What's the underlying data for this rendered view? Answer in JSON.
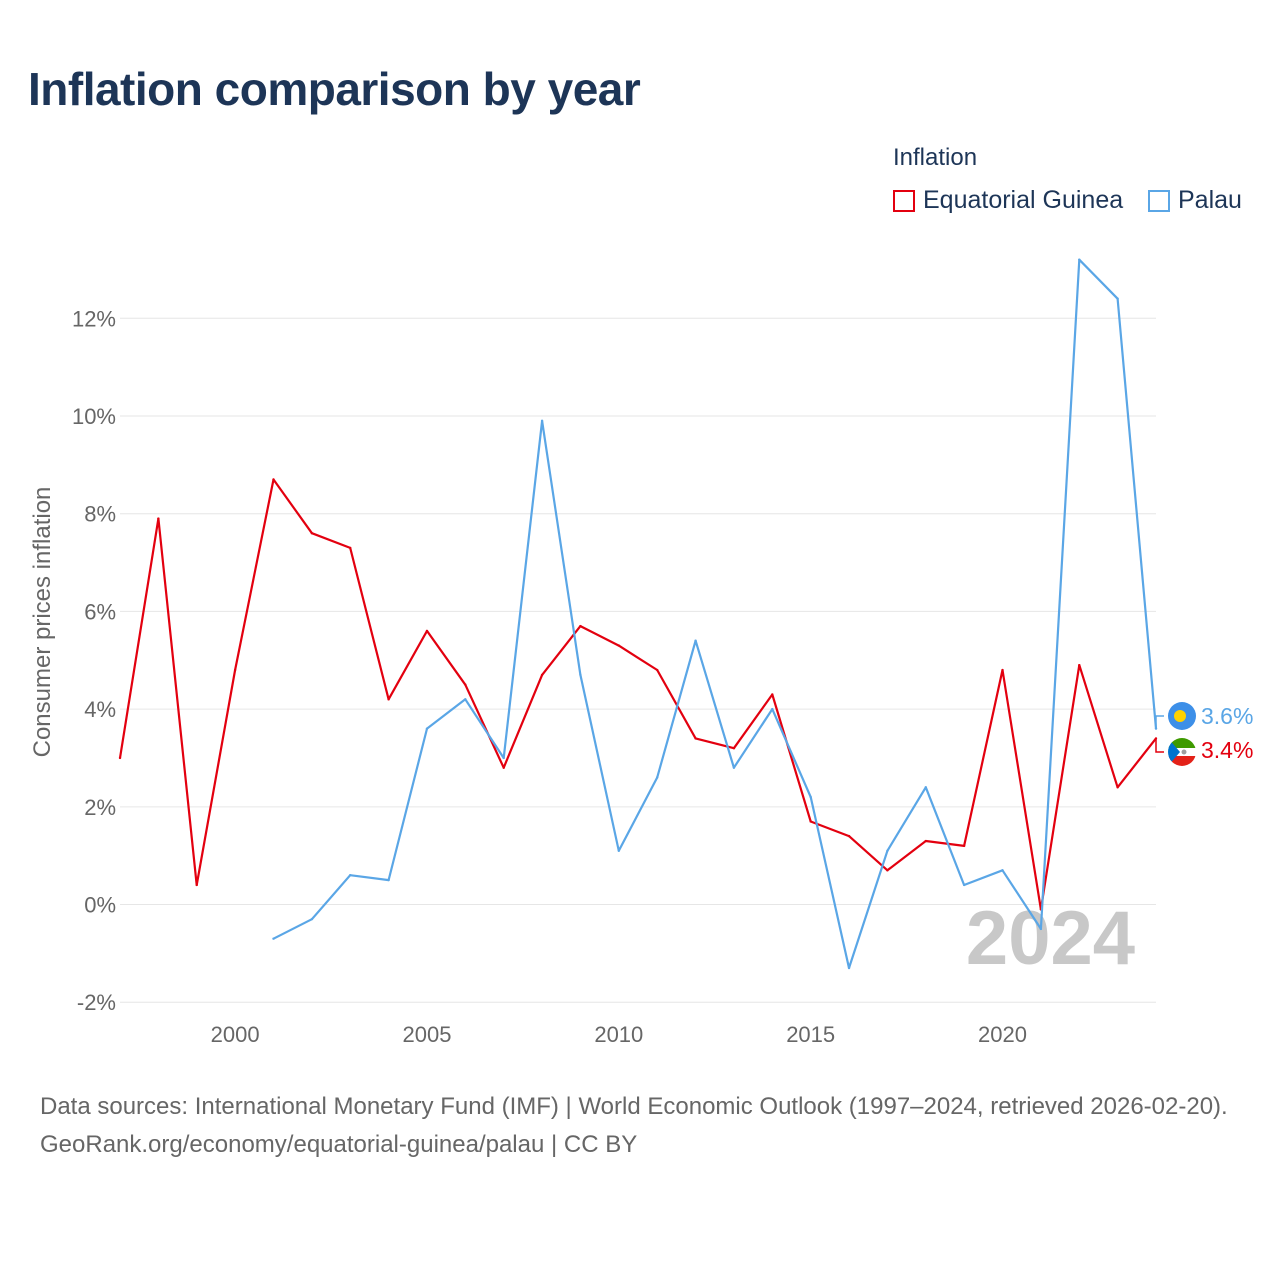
{
  "title": "Inflation comparison by year",
  "legend": {
    "title": "Inflation",
    "items": [
      {
        "label": "Equatorial Guinea",
        "color": "#e3000f"
      },
      {
        "label": "Palau",
        "color": "#5aa6e6"
      }
    ]
  },
  "chart_data": {
    "type": "line",
    "title": "Inflation comparison by year",
    "ylabel": "Consumer prices inflation",
    "xlabel": "",
    "xlim": [
      1997,
      2024
    ],
    "ylim": [
      -2.2,
      13.5
    ],
    "x_ticks": [
      2000,
      2005,
      2010,
      2015,
      2020
    ],
    "y_ticks": [
      -2,
      0,
      2,
      4,
      6,
      8,
      10,
      12
    ],
    "y_tick_labels": [
      "-2%",
      "0%",
      "2%",
      "4%",
      "6%",
      "8%",
      "10%",
      "12%"
    ],
    "grid": true,
    "year_watermark": "2024",
    "series": [
      {
        "name": "Equatorial Guinea",
        "color": "#e3000f",
        "end_label": "3.4%",
        "x": [
          1997,
          1998,
          1999,
          2000,
          2001,
          2002,
          2003,
          2004,
          2005,
          2006,
          2007,
          2008,
          2009,
          2010,
          2011,
          2012,
          2013,
          2014,
          2015,
          2016,
          2017,
          2018,
          2019,
          2020,
          2021,
          2022,
          2023,
          2024
        ],
        "values": [
          3.0,
          7.9,
          0.4,
          4.8,
          8.7,
          7.6,
          7.3,
          4.2,
          5.6,
          4.5,
          2.8,
          4.7,
          5.7,
          5.3,
          4.8,
          3.4,
          3.2,
          4.3,
          1.7,
          1.4,
          0.7,
          1.3,
          1.2,
          4.8,
          -0.1,
          4.9,
          2.4,
          3.4
        ]
      },
      {
        "name": "Palau",
        "color": "#5aa6e6",
        "end_label": "3.6%",
        "x": [
          2001,
          2002,
          2003,
          2004,
          2005,
          2006,
          2007,
          2008,
          2009,
          2010,
          2011,
          2012,
          2013,
          2014,
          2015,
          2016,
          2017,
          2018,
          2019,
          2020,
          2021,
          2022,
          2023,
          2024
        ],
        "values": [
          -0.7,
          -0.3,
          0.6,
          0.5,
          3.6,
          4.2,
          3.0,
          9.9,
          4.7,
          1.1,
          2.6,
          5.4,
          2.8,
          4.0,
          2.2,
          -1.3,
          1.1,
          2.4,
          0.4,
          0.7,
          -0.5,
          13.2,
          12.4,
          3.6
        ]
      }
    ]
  },
  "source": {
    "line1": "Data sources: International Monetary Fund (IMF) | World Economic Outlook (1997–2024, retrieved 2026-02-20).",
    "line2": "GeoRank.org/economy/equatorial-guinea/palau | CC BY"
  }
}
